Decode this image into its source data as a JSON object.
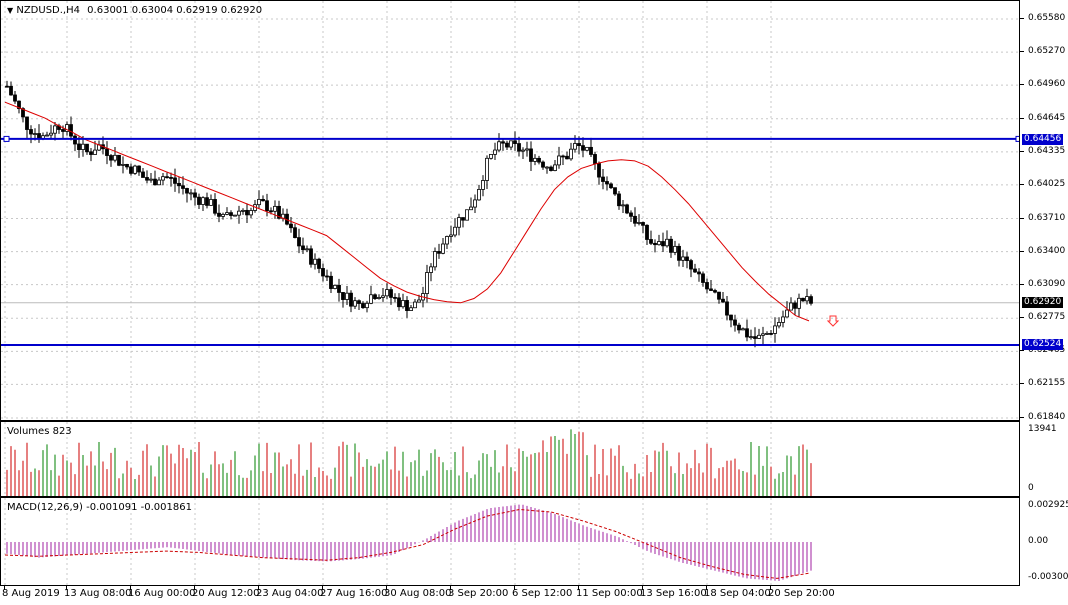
{
  "header": {
    "symbol_label": "NZDUSD.,H4",
    "ohlc": "0.63001 0.63004 0.62919 0.62920",
    "dropdown_icon": "triangle-down-icon"
  },
  "price_scale": {
    "labels": [
      "0.65580",
      "0.65270",
      "0.64960",
      "0.64645",
      "0.64335",
      "0.64025",
      "0.63710",
      "0.63400",
      "0.63090",
      "0.62775",
      "0.62465",
      "0.62155",
      "0.61840"
    ]
  },
  "levels": {
    "resistance": "0.64456",
    "support": "0.62524",
    "current": "0.62920"
  },
  "volumes": {
    "label": "Volumes 823",
    "max": "13941",
    "min": "0"
  },
  "macd": {
    "label": "MACD(12,26,9) -0.001091 -0.001861",
    "labels": [
      "0.002925",
      "0.00",
      "-0.003001"
    ]
  },
  "time_axis": {
    "labels": [
      "8 Aug 2019",
      "13 Aug 08:00",
      "16 Aug 00:00",
      "20 Aug 12:00",
      "23 Aug 04:00",
      "27 Aug 16:00",
      "30 Aug 08:00",
      "3 Sep 20:00",
      "6 Sep 12:00",
      "11 Sep 00:00",
      "13 Sep 16:00",
      "18 Sep 04:00",
      "20 Sep 20:00"
    ]
  },
  "colors": {
    "level_line": "#0000cc",
    "ma_line": "#dd0000",
    "vol_up": "#008000",
    "vol_down": "#cc0000",
    "macd_hist": "#a020a0",
    "macd_signal": "#cc0000",
    "grid": "#c8c8c8",
    "arrow": "#ff3333"
  },
  "chart_data": {
    "type": "candlestick",
    "symbol": "NZDUSD.",
    "timeframe": "H4",
    "close_path": [
      0.6495,
      0.6478,
      0.646,
      0.6452,
      0.6448,
      0.6455,
      0.646,
      0.645,
      0.6438,
      0.6432,
      0.644,
      0.6435,
      0.6428,
      0.642,
      0.6418,
      0.641,
      0.6405,
      0.6412,
      0.6408,
      0.6402,
      0.6395,
      0.639,
      0.6388,
      0.638,
      0.637,
      0.6375,
      0.638,
      0.6378,
      0.6385,
      0.6382,
      0.6375,
      0.6365,
      0.635,
      0.634,
      0.633,
      0.632,
      0.631,
      0.63,
      0.6295,
      0.629,
      0.6298,
      0.6302,
      0.63,
      0.6295,
      0.629,
      0.6288,
      0.63,
      0.633,
      0.6345,
      0.636,
      0.637,
      0.6378,
      0.6395,
      0.642,
      0.6435,
      0.644,
      0.6438,
      0.6435,
      0.643,
      0.6425,
      0.642,
      0.6425,
      0.643,
      0.644,
      0.6435,
      0.642,
      0.641,
      0.6395,
      0.6385,
      0.6375,
      0.6365,
      0.635,
      0.6345,
      0.635,
      0.634,
      0.633,
      0.632,
      0.631,
      0.63,
      0.629,
      0.628,
      0.627,
      0.6262,
      0.6258,
      0.6262,
      0.627,
      0.628,
      0.629,
      0.6295,
      0.6292
    ],
    "ma_path": [
      0.648,
      0.6475,
      0.647,
      0.6465,
      0.6458,
      0.6452,
      0.6445,
      0.644,
      0.6435,
      0.643,
      0.6425,
      0.642,
      0.6415,
      0.641,
      0.6405,
      0.64,
      0.6395,
      0.639,
      0.6385,
      0.638,
      0.6375,
      0.637,
      0.6365,
      0.636,
      0.6355,
      0.6345,
      0.6335,
      0.6325,
      0.6315,
      0.6308,
      0.6302,
      0.6298,
      0.6295,
      0.6293,
      0.6292,
      0.6296,
      0.6305,
      0.632,
      0.634,
      0.636,
      0.638,
      0.6398,
      0.641,
      0.6418,
      0.6422,
      0.6425,
      0.6426,
      0.6425,
      0.642,
      0.641,
      0.6398,
      0.6385,
      0.637,
      0.6355,
      0.634,
      0.6325,
      0.6312,
      0.63,
      0.629,
      0.628,
      0.6275
    ],
    "ylim": [
      0.6184,
      0.6558
    ],
    "levels": [
      0.64456,
      0.62524
    ]
  }
}
